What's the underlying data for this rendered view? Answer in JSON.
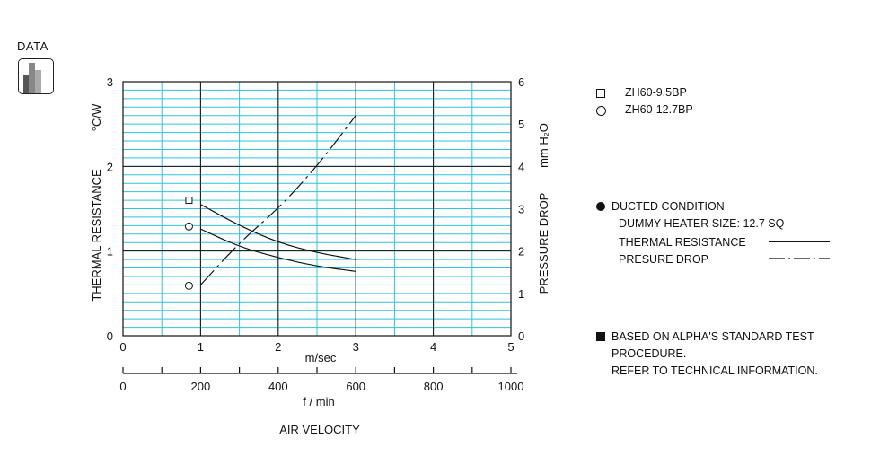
{
  "badge": {
    "label": "DATA",
    "icon": "bar-chart-icon"
  },
  "chart_data": {
    "type": "line",
    "title": "",
    "x": {
      "label_ms": "m/sec",
      "ticks_ms": [
        "0",
        "1",
        "2",
        "3",
        "4",
        "5"
      ],
      "range_ms": [
        0,
        5
      ],
      "label_fmin": "f / min",
      "ticks_fmin": [
        "0",
        "200",
        "400",
        "600",
        "800",
        "1000"
      ],
      "range_fmin": [
        0,
        1000
      ],
      "axis_title": "AIR VELOCITY"
    },
    "y_left": {
      "label": "THERMAL  RESISTANCE",
      "unit": "°C/W",
      "ticks": [
        "0",
        "1",
        "2",
        "3"
      ],
      "range": [
        0,
        3
      ]
    },
    "y_right": {
      "label": "PRESSURE  DROP",
      "unit": "mm H₂O",
      "ticks": [
        "0",
        "1",
        "2",
        "3",
        "4",
        "5",
        "6"
      ],
      "range": [
        0,
        6
      ]
    },
    "grid": true,
    "series": [
      {
        "name": "ZH60-9.5BP",
        "marker": "square",
        "kind": "thermal_resistance",
        "axis": "left",
        "x": [
          1.0,
          1.5,
          2.0,
          2.5,
          3.0
        ],
        "y": [
          1.55,
          1.3,
          1.1,
          0.98,
          0.9
        ]
      },
      {
        "name": "ZH60-12.7BP",
        "marker": "circle",
        "kind": "thermal_resistance",
        "axis": "left",
        "x": [
          1.0,
          1.5,
          2.0,
          2.5,
          3.0
        ],
        "y": [
          1.26,
          1.05,
          0.92,
          0.82,
          0.76
        ]
      },
      {
        "name": "pressure_drop",
        "marker": "none",
        "kind": "pressure_drop",
        "axis": "right",
        "x": [
          1.0,
          1.5,
          2.0,
          2.5,
          3.0
        ],
        "y": [
          1.2,
          2.2,
          3.0,
          4.0,
          5.2
        ]
      }
    ],
    "legend_markers": [
      {
        "marker": "square",
        "name": "ZH60-9.5BP",
        "at_x": 0.85,
        "at_y": 1.6
      },
      {
        "marker": "circle",
        "name": "ZH60-12.7BP",
        "at_x": 0.85,
        "at_y": 1.29
      },
      {
        "marker": "circle",
        "name": "pressure",
        "at_x": 0.85,
        "at_y": 0.59
      }
    ]
  },
  "legend": {
    "items": [
      {
        "marker": "square",
        "label": "ZH60-9.5BP"
      },
      {
        "marker": "circle",
        "label": "ZH60-12.7BP"
      }
    ]
  },
  "conditions": {
    "title": "DUCTED CONDITION",
    "heater": "DUMMY HEATER SIZE:  12.7 SQ",
    "thermal_label": "THERMAL RESISTANCE",
    "pressure_label": "PRESURE DROP"
  },
  "standard": {
    "line1": "BASED ON ALPHA'S STANDARD TEST",
    "line2": "PROCEDURE.",
    "line3": "REFER TO TECHNICAL INFORMATION."
  }
}
